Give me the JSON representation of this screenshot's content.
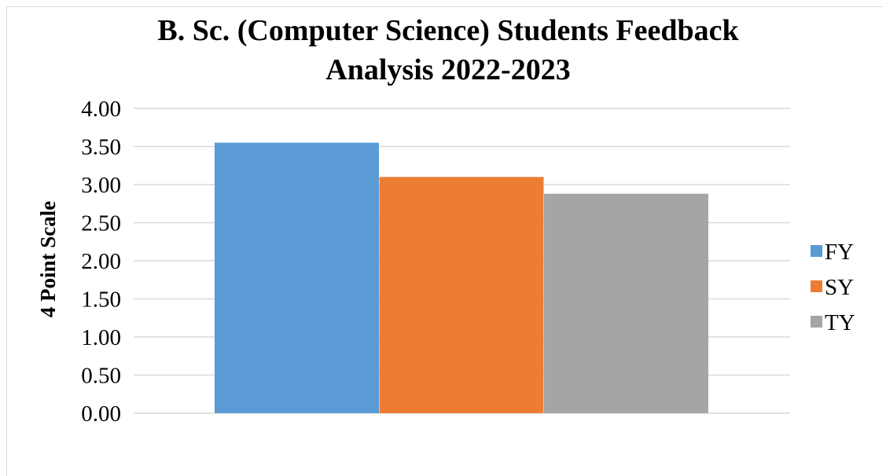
{
  "chart_data": {
    "type": "bar",
    "title_lines": [
      "B. Sc. (Computer Science) Students Feedback",
      "Analysis 2022-2023"
    ],
    "xlabel": "",
    "ylabel": "4 Point Scale",
    "ylim": [
      0,
      4
    ],
    "yticks": [
      "0.00",
      "0.50",
      "1.00",
      "1.50",
      "2.00",
      "2.50",
      "3.00",
      "3.50",
      "4.00"
    ],
    "grid": true,
    "legend_position": "right",
    "series": [
      {
        "name": "FY",
        "value": 3.55,
        "color": "#5b9bd5"
      },
      {
        "name": "SY",
        "value": 3.1,
        "color": "#ed7d31"
      },
      {
        "name": "TY",
        "value": 2.88,
        "color": "#a5a5a5"
      }
    ]
  }
}
